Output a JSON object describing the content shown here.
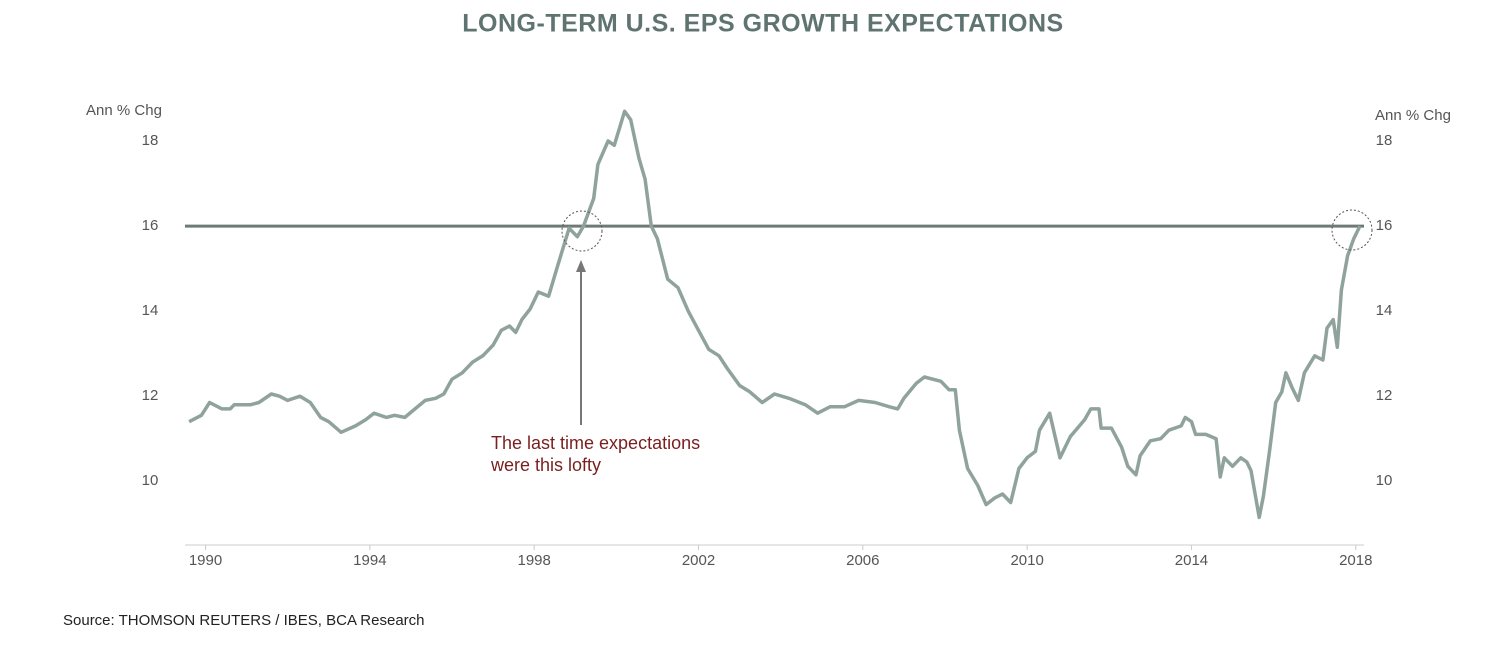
{
  "chart_data": {
    "type": "line",
    "title": "LONG-TERM U.S. EPS GROWTH EXPECTATIONS",
    "ylabel": "Ann % Chg",
    "y2label": "Ann % Chg",
    "source": "Source: THOMSON REUTERS / IBES, BCA Research",
    "annotation": [
      "The last time expectations",
      "were this lofty"
    ],
    "reference_line": {
      "value": 16,
      "color": "#6f7a78"
    },
    "xlim": [
      1989.5,
      2018.2
    ],
    "xticks": [
      1990,
      1994,
      1998,
      2002,
      2006,
      2010,
      2014,
      2018
    ],
    "ylim": [
      8.5,
      19
    ],
    "yticks": [
      10,
      12,
      14,
      16,
      18
    ],
    "y2lim": [
      8.5,
      19
    ],
    "y2ticks": [
      10,
      12,
      14,
      16,
      18
    ],
    "x": [
      1989.6,
      1989.9,
      1990.1,
      1990.4,
      1990.6,
      1990.7,
      1991.1,
      1991.3,
      1991.6,
      1991.8,
      1992.0,
      1992.3,
      1992.55,
      1992.8,
      1993.0,
      1993.3,
      1993.65,
      1993.9,
      1994.1,
      1994.4,
      1994.6,
      1994.85,
      1995.1,
      1995.35,
      1995.6,
      1995.8,
      1996.0,
      1996.25,
      1996.5,
      1996.75,
      1997.0,
      1997.2,
      1997.4,
      1997.55,
      1997.7,
      1997.9,
      1998.1,
      1998.35,
      1998.55,
      1998.85,
      1999.05,
      1999.2,
      1999.45,
      1999.55,
      1999.8,
      1999.95,
      2000.2,
      2000.35,
      2000.55,
      2000.7,
      2000.85,
      2001.0,
      2001.25,
      2001.5,
      2001.75,
      2002.0,
      2002.25,
      2002.5,
      2002.7,
      2003.0,
      2003.25,
      2003.55,
      2003.85,
      2004.2,
      2004.6,
      2004.9,
      2005.2,
      2005.55,
      2005.9,
      2006.3,
      2006.65,
      2006.85,
      2007.0,
      2007.3,
      2007.5,
      2007.9,
      2008.1,
      2008.25,
      2008.35,
      2008.55,
      2008.8,
      2009.0,
      2009.2,
      2009.4,
      2009.6,
      2009.8,
      2010.0,
      2010.2,
      2010.3,
      2010.55,
      2010.8,
      2011.05,
      2011.4,
      2011.55,
      2011.75,
      2011.8,
      2012.05,
      2012.3,
      2012.45,
      2012.65,
      2012.75,
      2013.0,
      2013.25,
      2013.45,
      2013.75,
      2013.85,
      2014.0,
      2014.1,
      2014.35,
      2014.6,
      2014.7,
      2014.8,
      2015.0,
      2015.2,
      2015.35,
      2015.45,
      2015.65,
      2015.75,
      2015.9,
      2016.05,
      2016.2,
      2016.3,
      2016.45,
      2016.6,
      2016.75,
      2017.0,
      2017.2,
      2017.3,
      2017.45,
      2017.55,
      2017.65,
      2017.8,
      2017.95,
      2018.1
    ],
    "series": [
      {
        "color": "#8fa39c",
        "values": [
          11.4,
          11.55,
          11.85,
          11.7,
          11.7,
          11.8,
          11.8,
          11.85,
          12.05,
          12.0,
          11.9,
          12.0,
          11.85,
          11.5,
          11.4,
          11.15,
          11.3,
          11.45,
          11.6,
          11.5,
          11.55,
          11.5,
          11.7,
          11.9,
          11.95,
          12.05,
          12.4,
          12.55,
          12.8,
          12.95,
          13.2,
          13.55,
          13.65,
          13.5,
          13.8,
          14.05,
          14.45,
          14.35,
          15.0,
          15.95,
          15.75,
          16.0,
          16.65,
          17.45,
          18.0,
          17.9,
          18.7,
          18.5,
          17.6,
          17.1,
          16.0,
          15.7,
          14.75,
          14.55,
          14.0,
          13.55,
          13.1,
          12.95,
          12.65,
          12.25,
          12.1,
          11.85,
          12.05,
          11.95,
          11.8,
          11.6,
          11.75,
          11.75,
          11.9,
          11.85,
          11.75,
          11.7,
          11.95,
          12.3,
          12.45,
          12.35,
          12.15,
          12.15,
          11.2,
          10.3,
          9.9,
          9.45,
          9.6,
          9.7,
          9.5,
          10.3,
          10.55,
          10.7,
          11.2,
          11.6,
          10.55,
          11.05,
          11.45,
          11.7,
          11.7,
          11.25,
          11.25,
          10.8,
          10.35,
          10.15,
          10.6,
          10.95,
          11.0,
          11.2,
          11.3,
          11.5,
          11.4,
          11.1,
          11.1,
          11.0,
          10.1,
          10.55,
          10.35,
          10.55,
          10.45,
          10.25,
          9.15,
          9.65,
          10.7,
          11.85,
          12.1,
          12.55,
          12.2,
          11.9,
          12.55,
          12.95,
          12.85,
          13.6,
          13.8,
          13.15,
          14.5,
          15.3,
          15.7,
          16.0
        ]
      }
    ]
  }
}
